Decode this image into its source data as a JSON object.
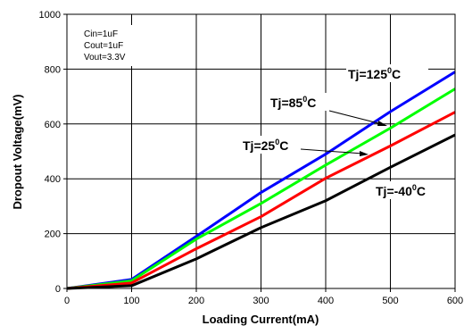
{
  "chart_data": {
    "type": "line",
    "xlabel": "Loading Current(mA)",
    "ylabel": "Dropout Voltage(mV)",
    "xlim": [
      0,
      600
    ],
    "ylim": [
      0,
      1000
    ],
    "x_ticks": [
      "0",
      "100",
      "200",
      "300",
      "400",
      "500",
      "600"
    ],
    "y_ticks": [
      "0",
      "200",
      "400",
      "600",
      "800",
      "1000"
    ],
    "grid": true,
    "x": [
      0,
      100,
      200,
      300,
      400,
      500,
      600
    ],
    "series": [
      {
        "name": "Tj=125°C",
        "label_prefix": "Tj=125",
        "label_sup": "0",
        "label_suffix": "C",
        "color": "#0000ff",
        "values": [
          0,
          33,
          190,
          350,
          490,
          645,
          790
        ]
      },
      {
        "name": "Tj=85°C",
        "label_prefix": "Tj=85",
        "label_sup": "0",
        "label_suffix": "C",
        "color": "#00ff00",
        "values": [
          0,
          28,
          180,
          310,
          450,
          585,
          728
        ]
      },
      {
        "name": "Tj=25°C",
        "label_prefix": "Tj=25",
        "label_sup": "0",
        "label_suffix": "C",
        "color": "#ff0000",
        "values": [
          0,
          20,
          145,
          262,
          402,
          520,
          643
        ]
      },
      {
        "name": "Tj=-40°C",
        "label_prefix": "Tj=-40",
        "label_sup": "0",
        "label_suffix": "C",
        "color": "#000000",
        "values": [
          0,
          10,
          108,
          222,
          320,
          442,
          560
        ]
      }
    ],
    "conditions": [
      "Cin=1uF",
      "Cout=1uF",
      "Vout=3.3V"
    ]
  }
}
